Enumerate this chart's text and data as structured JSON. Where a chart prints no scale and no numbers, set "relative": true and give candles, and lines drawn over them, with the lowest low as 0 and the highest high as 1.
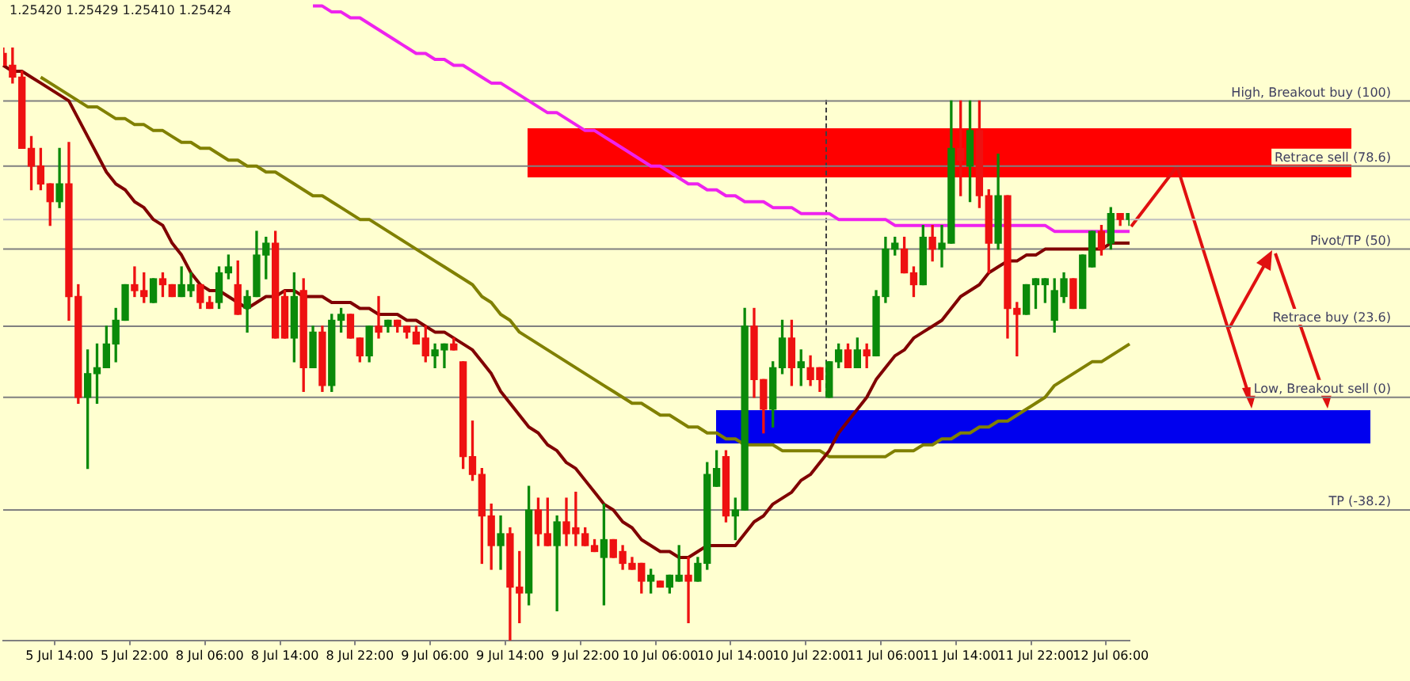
{
  "chart_data": {
    "type": "candlestick",
    "relative": true,
    "tick_labels": "x",
    "annotations": [
      "1.25420 1.25429 1.25410 1.25424"
    ],
    "categories": [
      null,
      null,
      null,
      null,
      null,
      null,
      "5 Jul 14:00",
      null,
      null,
      null,
      null,
      null,
      null,
      null,
      "5 Jul 22:00",
      null,
      null,
      null,
      null,
      null,
      null,
      null,
      "8 Jul 06:00",
      null,
      null,
      null,
      null,
      null,
      null,
      null,
      "8 Jul 14:00",
      null,
      null,
      null,
      null,
      null,
      null,
      null,
      "8 Jul 22:00",
      null,
      null,
      null,
      null,
      null,
      null,
      null,
      "9 Jul 06:00",
      null,
      null,
      null,
      null,
      null,
      null,
      null,
      "9 Jul 14:00",
      null,
      null,
      null,
      null,
      null,
      null,
      null,
      "9 Jul 22:00",
      null,
      null,
      null,
      null,
      null,
      null,
      null,
      "10 Jul 06:00",
      null,
      null,
      null,
      null,
      null,
      null,
      null,
      "10 Jul 14:00",
      null,
      null,
      null,
      null,
      null,
      null,
      null,
      "10 Jul 22:00",
      null,
      null,
      null,
      null,
      null,
      null,
      null,
      "11 Jul 06:00",
      null,
      null,
      null,
      null,
      null,
      null,
      null,
      "11 Jul 14:00",
      null,
      null,
      null,
      null,
      null,
      null,
      null,
      "11 Jul 22:00",
      null,
      null,
      null,
      null,
      null,
      null,
      null,
      "12 Jul 06:00",
      null,
      null
    ],
    "ohlc": [
      [
        0.99,
        1.0,
        0.97,
        0.97
      ],
      [
        0.97,
        1.0,
        0.94,
        0.95
      ],
      [
        0.95,
        0.96,
        0.83,
        0.83
      ],
      [
        0.83,
        0.85,
        0.76,
        0.8
      ],
      [
        0.8,
        0.83,
        0.76,
        0.77
      ],
      [
        0.77,
        0.77,
        0.7,
        0.74
      ],
      [
        0.74,
        0.83,
        0.73,
        0.77
      ],
      [
        0.77,
        0.84,
        0.54,
        0.58
      ],
      [
        0.58,
        0.6,
        0.4,
        0.41
      ],
      [
        0.41,
        0.49,
        0.29,
        0.45
      ],
      [
        0.45,
        0.5,
        0.4,
        0.46
      ],
      [
        0.46,
        0.53,
        0.46,
        0.5
      ],
      [
        0.5,
        0.56,
        0.47,
        0.54
      ],
      [
        0.54,
        0.6,
        0.54,
        0.6
      ],
      [
        0.6,
        0.63,
        0.58,
        0.59
      ],
      [
        0.59,
        0.62,
        0.57,
        0.58
      ],
      [
        0.57,
        0.61,
        0.57,
        0.61
      ],
      [
        0.61,
        0.62,
        0.58,
        0.6
      ],
      [
        0.6,
        0.6,
        0.58,
        0.58
      ],
      [
        0.58,
        0.63,
        0.58,
        0.6
      ],
      [
        0.59,
        0.62,
        0.58,
        0.6
      ],
      [
        0.6,
        0.6,
        0.56,
        0.57
      ],
      [
        0.57,
        0.58,
        0.56,
        0.56
      ],
      [
        0.57,
        0.63,
        0.56,
        0.62
      ],
      [
        0.62,
        0.65,
        0.61,
        0.63
      ],
      [
        0.6,
        0.64,
        0.55,
        0.55
      ],
      [
        0.56,
        0.59,
        0.52,
        0.58
      ],
      [
        0.58,
        0.69,
        0.58,
        0.65
      ],
      [
        0.65,
        0.68,
        0.61,
        0.67
      ],
      [
        0.67,
        0.69,
        0.51,
        0.51
      ],
      [
        0.58,
        0.59,
        0.51,
        0.51
      ],
      [
        0.51,
        0.62,
        0.47,
        0.58
      ],
      [
        0.59,
        0.61,
        0.42,
        0.46
      ],
      [
        0.46,
        0.53,
        0.46,
        0.52
      ],
      [
        0.52,
        0.53,
        0.42,
        0.43
      ],
      [
        0.43,
        0.55,
        0.42,
        0.54
      ],
      [
        0.54,
        0.56,
        0.52,
        0.55
      ],
      [
        0.55,
        0.55,
        0.51,
        0.51
      ],
      [
        0.51,
        0.51,
        0.47,
        0.48
      ],
      [
        0.48,
        0.53,
        0.47,
        0.53
      ],
      [
        0.53,
        0.58,
        0.51,
        0.52
      ],
      [
        0.53,
        0.54,
        0.52,
        0.54
      ],
      [
        0.54,
        0.54,
        0.52,
        0.53
      ],
      [
        0.53,
        0.53,
        0.51,
        0.52
      ],
      [
        0.52,
        0.53,
        0.5,
        0.5
      ],
      [
        0.51,
        0.53,
        0.47,
        0.48
      ],
      [
        0.48,
        0.5,
        0.46,
        0.49
      ],
      [
        0.49,
        0.5,
        0.46,
        0.5
      ],
      [
        0.5,
        0.51,
        0.49,
        0.49
      ],
      [
        0.47,
        0.47,
        0.29,
        0.31
      ],
      [
        0.31,
        0.37,
        0.27,
        0.28
      ],
      [
        0.28,
        0.29,
        0.13,
        0.21
      ],
      [
        0.21,
        0.23,
        0.12,
        0.16
      ],
      [
        0.16,
        0.21,
        0.12,
        0.18
      ],
      [
        0.18,
        0.19,
        0.0,
        0.09
      ],
      [
        0.09,
        0.15,
        0.03,
        0.08
      ],
      [
        0.08,
        0.26,
        0.06,
        0.22
      ],
      [
        0.22,
        0.24,
        0.16,
        0.18
      ],
      [
        0.18,
        0.24,
        0.16,
        0.16
      ],
      [
        0.16,
        0.21,
        0.05,
        0.2
      ],
      [
        0.2,
        0.24,
        0.16,
        0.18
      ],
      [
        0.19,
        0.25,
        0.16,
        0.18
      ],
      [
        0.18,
        0.19,
        0.16,
        0.16
      ],
      [
        0.16,
        0.17,
        0.15,
        0.15
      ],
      [
        0.14,
        0.23,
        0.06,
        0.17
      ],
      [
        0.17,
        0.17,
        0.14,
        0.14
      ],
      [
        0.15,
        0.16,
        0.12,
        0.13
      ],
      [
        0.13,
        0.14,
        0.12,
        0.12
      ],
      [
        0.13,
        0.13,
        0.08,
        0.1
      ],
      [
        0.1,
        0.12,
        0.08,
        0.11
      ],
      [
        0.1,
        0.1,
        0.09,
        0.09
      ],
      [
        0.09,
        0.11,
        0.08,
        0.11
      ],
      [
        0.1,
        0.16,
        0.1,
        0.11
      ],
      [
        0.11,
        0.14,
        0.03,
        0.1
      ],
      [
        0.1,
        0.14,
        0.1,
        0.13
      ],
      [
        0.13,
        0.3,
        0.12,
        0.28
      ],
      [
        0.26,
        0.32,
        0.26,
        0.29
      ],
      [
        0.31,
        0.32,
        0.2,
        0.21
      ],
      [
        0.21,
        0.24,
        0.17,
        0.22
      ],
      [
        0.22,
        0.56,
        0.22,
        0.53
      ],
      [
        0.53,
        0.56,
        0.41,
        0.44
      ],
      [
        0.44,
        0.44,
        0.35,
        0.39
      ],
      [
        0.39,
        0.47,
        0.36,
        0.46
      ],
      [
        0.46,
        0.54,
        0.45,
        0.51
      ],
      [
        0.51,
        0.54,
        0.43,
        0.46
      ],
      [
        0.46,
        0.49,
        0.43,
        0.47
      ],
      [
        0.46,
        0.48,
        0.43,
        0.44
      ],
      [
        0.46,
        0.46,
        0.42,
        0.44
      ],
      [
        0.41,
        0.47,
        0.41,
        0.47
      ],
      [
        0.47,
        0.5,
        0.46,
        0.49
      ],
      [
        0.49,
        0.5,
        0.46,
        0.46
      ],
      [
        0.46,
        0.51,
        0.46,
        0.49
      ],
      [
        0.49,
        0.5,
        0.46,
        0.48
      ],
      [
        0.48,
        0.59,
        0.48,
        0.58
      ],
      [
        0.58,
        0.68,
        0.57,
        0.66
      ],
      [
        0.66,
        0.68,
        0.65,
        0.67
      ],
      [
        0.66,
        0.68,
        0.62,
        0.62
      ],
      [
        0.62,
        0.63,
        0.58,
        0.6
      ],
      [
        0.6,
        0.7,
        0.6,
        0.68
      ],
      [
        0.68,
        0.7,
        0.64,
        0.66
      ],
      [
        0.66,
        0.7,
        0.63,
        0.67
      ],
      [
        0.67,
        0.91,
        0.67,
        0.83
      ],
      [
        0.83,
        0.91,
        0.75,
        0.81
      ],
      [
        0.8,
        0.91,
        0.74,
        0.86
      ],
      [
        0.86,
        0.91,
        0.73,
        0.75
      ],
      [
        0.75,
        0.76,
        0.62,
        0.67
      ],
      [
        0.67,
        0.82,
        0.66,
        0.75
      ],
      [
        0.75,
        0.75,
        0.51,
        0.56
      ],
      [
        0.56,
        0.57,
        0.48,
        0.55
      ],
      [
        0.55,
        0.6,
        0.55,
        0.6
      ],
      [
        0.6,
        0.61,
        0.56,
        0.61
      ],
      [
        0.6,
        0.61,
        0.57,
        0.61
      ],
      [
        0.54,
        0.61,
        0.52,
        0.59
      ],
      [
        0.58,
        0.62,
        0.57,
        0.61
      ],
      [
        0.61,
        0.61,
        0.56,
        0.56
      ],
      [
        0.56,
        0.65,
        0.56,
        0.65
      ],
      [
        0.63,
        0.69,
        0.63,
        0.69
      ],
      [
        0.69,
        0.7,
        0.65,
        0.66
      ],
      [
        0.67,
        0.73,
        0.66,
        0.72
      ],
      [
        0.72,
        0.72,
        0.7,
        0.71
      ],
      [
        0.71,
        0.72,
        0.7,
        0.72
      ]
    ],
    "colors": [
      "#ee1111",
      "#ee1111",
      "#ee1111",
      "#ee1111",
      "#ee1111",
      "#ee1111",
      "#0a8a0a",
      "#ee1111",
      "#ee1111",
      "#0a8a0a",
      "#0a8a0a",
      "#0a8a0a",
      "#0a8a0a",
      "#0a8a0a",
      "#ee1111",
      "#ee1111",
      "#0a8a0a",
      "#ee1111",
      "#ee1111",
      "#0a8a0a",
      "#0a8a0a",
      "#ee1111",
      "#ee1111",
      "#0a8a0a",
      "#0a8a0a",
      "#ee1111",
      "#0a8a0a",
      "#0a8a0a",
      "#0a8a0a",
      "#ee1111",
      "#ee1111",
      "#0a8a0a",
      "#ee1111",
      "#0a8a0a",
      "#ee1111",
      "#0a8a0a",
      "#0a8a0a",
      "#ee1111",
      "#ee1111",
      "#0a8a0a",
      "#ee1111",
      "#0a8a0a",
      "#ee1111",
      "#ee1111",
      "#ee1111",
      "#ee1111",
      "#0a8a0a",
      "#0a8a0a",
      "#ee1111",
      "#ee1111",
      "#ee1111",
      "#ee1111",
      "#ee1111",
      "#0a8a0a",
      "#ee1111",
      "#ee1111",
      "#0a8a0a",
      "#ee1111",
      "#ee1111",
      "#0a8a0a",
      "#ee1111",
      "#ee1111",
      "#ee1111",
      "#ee1111",
      "#0a8a0a",
      "#ee1111",
      "#ee1111",
      "#ee1111",
      "#ee1111",
      "#0a8a0a",
      "#ee1111",
      "#0a8a0a",
      "#0a8a0a",
      "#ee1111",
      "#0a8a0a",
      "#0a8a0a",
      "#0a8a0a",
      "#ee1111",
      "#0a8a0a",
      "#0a8a0a",
      "#ee1111",
      "#ee1111",
      "#0a8a0a",
      "#0a8a0a",
      "#ee1111",
      "#0a8a0a",
      "#ee1111",
      "#ee1111",
      "#0a8a0a",
      "#0a8a0a",
      "#ee1111",
      "#0a8a0a",
      "#ee1111",
      "#0a8a0a",
      "#0a8a0a",
      "#0a8a0a",
      "#ee1111",
      "#ee1111",
      "#0a8a0a",
      "#ee1111",
      "#0a8a0a",
      "#0a8a0a",
      "#ee1111",
      "#0a8a0a",
      "#ee1111",
      "#ee1111",
      "#0a8a0a",
      "#ee1111",
      "#ee1111",
      "#0a8a0a",
      "#0a8a0a",
      "#0a8a0a",
      "#0a8a0a",
      "#0a8a0a",
      "#ee1111",
      "#0a8a0a",
      "#0a8a0a",
      "#ee1111",
      "#0a8a0a",
      "#ee1111",
      "#0a8a0a"
    ],
    "series": [
      {
        "type": "line",
        "color": "#800000",
        "values": [
          0.97,
          0.96,
          0.96,
          0.95,
          0.94,
          0.93,
          0.92,
          0.91,
          0.88,
          0.85,
          0.82,
          0.79,
          0.77,
          0.76,
          0.74,
          0.73,
          0.71,
          0.7,
          0.67,
          0.65,
          0.62,
          0.6,
          0.59,
          0.59,
          0.58,
          0.57,
          0.56,
          0.57,
          0.58,
          0.58,
          0.59,
          0.59,
          0.58,
          0.58,
          0.58,
          0.57,
          0.57,
          0.57,
          0.56,
          0.56,
          0.55,
          0.55,
          0.55,
          0.54,
          0.54,
          0.53,
          0.52,
          0.52,
          0.51,
          0.5,
          0.49,
          0.47,
          0.45,
          0.42,
          0.4,
          0.38,
          0.36,
          0.35,
          0.33,
          0.32,
          0.3,
          0.29,
          0.27,
          0.25,
          0.23,
          0.22,
          0.2,
          0.19,
          0.17,
          0.16,
          0.15,
          0.15,
          0.14,
          0.14,
          0.15,
          0.16,
          0.16,
          0.16,
          0.16,
          0.18,
          0.2,
          0.21,
          0.23,
          0.24,
          0.25,
          0.27,
          0.28,
          0.3,
          0.32,
          0.35,
          0.37,
          0.39,
          0.41,
          0.44,
          0.46,
          0.48,
          0.49,
          0.51,
          0.52,
          0.53,
          0.54,
          0.56,
          0.58,
          0.59,
          0.6,
          0.62,
          0.63,
          0.64,
          0.64,
          0.65,
          0.65,
          0.66,
          0.66,
          0.66,
          0.66,
          0.66,
          0.66,
          0.66,
          0.67,
          0.67,
          0.67
        ]
      },
      {
        "type": "line",
        "color": "#808000",
        "values": [
          null,
          null,
          null,
          null,
          0.95,
          0.94,
          0.93,
          0.92,
          0.91,
          0.9,
          0.9,
          0.89,
          0.88,
          0.88,
          0.87,
          0.87,
          0.86,
          0.86,
          0.85,
          0.84,
          0.84,
          0.83,
          0.83,
          0.82,
          0.81,
          0.81,
          0.8,
          0.8,
          0.79,
          0.79,
          0.78,
          0.77,
          0.76,
          0.75,
          0.75,
          0.74,
          0.73,
          0.72,
          0.71,
          0.71,
          0.7,
          0.69,
          0.68,
          0.67,
          0.66,
          0.65,
          0.64,
          0.63,
          0.62,
          0.61,
          0.6,
          0.58,
          0.57,
          0.55,
          0.54,
          0.52,
          0.51,
          0.5,
          0.49,
          0.48,
          0.47,
          0.46,
          0.45,
          0.44,
          0.43,
          0.42,
          0.41,
          0.4,
          0.4,
          0.39,
          0.38,
          0.38,
          0.37,
          0.36,
          0.36,
          0.35,
          0.35,
          0.34,
          0.34,
          0.33,
          0.33,
          0.33,
          0.33,
          0.32,
          0.32,
          0.32,
          0.32,
          0.32,
          0.31,
          0.31,
          0.31,
          0.31,
          0.31,
          0.31,
          0.31,
          0.32,
          0.32,
          0.32,
          0.33,
          0.33,
          0.34,
          0.34,
          0.35,
          0.35,
          0.36,
          0.36,
          0.37,
          0.37,
          0.38,
          0.39,
          0.4,
          0.41,
          0.43,
          0.44,
          0.45,
          0.46,
          0.47,
          0.47,
          0.48,
          0.49,
          0.5
        ]
      },
      {
        "type": "line",
        "color": "#ee22ee",
        "values": [
          null,
          null,
          null,
          null,
          null,
          null,
          null,
          null,
          null,
          null,
          null,
          null,
          null,
          null,
          null,
          null,
          null,
          null,
          null,
          null,
          null,
          null,
          null,
          null,
          null,
          null,
          null,
          null,
          null,
          null,
          null,
          null,
          null,
          1.07,
          1.07,
          1.06,
          1.06,
          1.05,
          1.05,
          1.04,
          1.03,
          1.02,
          1.01,
          1.0,
          0.99,
          0.99,
          0.98,
          0.98,
          0.97,
          0.97,
          0.96,
          0.95,
          0.94,
          0.94,
          0.93,
          0.92,
          0.91,
          0.9,
          0.89,
          0.89,
          0.88,
          0.87,
          0.86,
          0.86,
          0.85,
          0.84,
          0.83,
          0.82,
          0.81,
          0.8,
          0.8,
          0.79,
          0.78,
          0.77,
          0.77,
          0.76,
          0.76,
          0.75,
          0.75,
          0.74,
          0.74,
          0.74,
          0.73,
          0.73,
          0.73,
          0.72,
          0.72,
          0.72,
          0.72,
          0.71,
          0.71,
          0.71,
          0.71,
          0.71,
          0.71,
          0.7,
          0.7,
          0.7,
          0.7,
          0.7,
          0.7,
          0.7,
          0.7,
          0.7,
          0.7,
          0.7,
          0.7,
          0.7,
          0.7,
          0.7,
          0.7,
          0.7,
          0.69,
          0.69,
          0.69,
          0.69,
          0.69,
          0.69,
          0.69,
          0.69,
          0.69
        ]
      }
    ],
    "ref_lines": [
      {
        "axis": "y",
        "value": 0.71,
        "color": "#c0c0c0"
      },
      {
        "axis": "y",
        "value": 0.91,
        "label": "High, Breakout buy (100)",
        "color": "#808080"
      },
      {
        "axis": "y",
        "value": 0.8,
        "label": "Retrace sell (78.6)",
        "color": "#808080"
      },
      {
        "axis": "y",
        "value": 0.66,
        "label": "Pivot/TP (50)",
        "color": "#808080"
      },
      {
        "axis": "y",
        "value": 0.53,
        "label": "Retrace buy (23.6)",
        "color": "#808080"
      },
      {
        "axis": "y",
        "value": 0.41,
        "label": "Low, Breakout sell (0)",
        "color": "#808080"
      },
      {
        "axis": "y",
        "value": 0.22,
        "label": "TP (-38.2)",
        "color": "#808080"
      }
    ]
  }
}
